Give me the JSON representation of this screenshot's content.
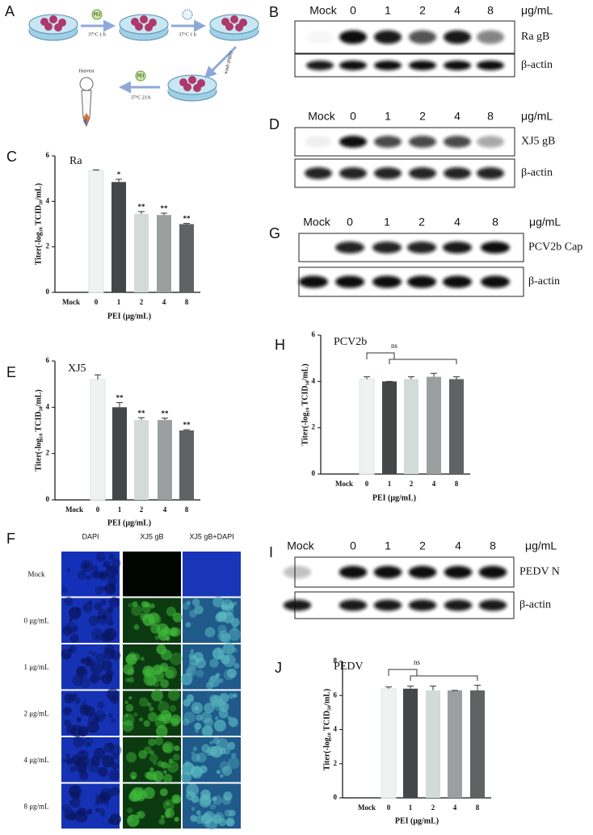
{
  "chart_data": [
    {
      "type": "bar",
      "panel": "C",
      "title": "Ra",
      "categories": [
        "Mock",
        "0",
        "1",
        "2",
        "4",
        "8"
      ],
      "values": [
        null,
        5.35,
        4.85,
        3.45,
        3.4,
        3.0
      ],
      "errors": [
        null,
        0.03,
        0.12,
        0.1,
        0.08,
        0.03
      ],
      "significance": [
        null,
        null,
        "*",
        "**",
        "**",
        "**"
      ],
      "colors": [
        null,
        "#eef3f2",
        "#444747",
        "#d3dbd9",
        "#9b9f9f",
        "#5f6363"
      ],
      "ylim": [
        0,
        6
      ],
      "yticks": [
        0,
        2,
        4,
        6
      ],
      "ylabel": "Titer(-log₁₀ TCID₅₀/mL)",
      "xlabel": "PEI (μg/mL)"
    },
    {
      "type": "bar",
      "panel": "E",
      "title": "XJ5",
      "categories": [
        "Mock",
        "0",
        "1",
        "2",
        "4",
        "8"
      ],
      "values": [
        null,
        5.2,
        4.0,
        3.45,
        3.45,
        3.0
      ],
      "errors": [
        null,
        0.2,
        0.2,
        0.1,
        0.08,
        0.03
      ],
      "significance": [
        null,
        null,
        "**",
        "**",
        "**",
        "**"
      ],
      "colors": [
        null,
        "#eef3f2",
        "#444747",
        "#d3dbd9",
        "#9b9f9f",
        "#5f6363"
      ],
      "ylim": [
        0,
        6
      ],
      "yticks": [
        0,
        2,
        4,
        6
      ],
      "ylabel": "Titer(-log₁₀ TCID₅₀/mL)",
      "xlabel": "PEI (μg/mL)"
    },
    {
      "type": "bar",
      "panel": "H",
      "title": "PCV2b",
      "categories": [
        "Mock",
        "0",
        "1",
        "2",
        "4",
        "8"
      ],
      "values": [
        null,
        4.1,
        4.0,
        4.1,
        4.2,
        4.1
      ],
      "errors": [
        null,
        0.1,
        0.0,
        0.1,
        0.15,
        0.1
      ],
      "annotation": "ns",
      "colors": [
        null,
        "#eef3f2",
        "#444747",
        "#d3dbd9",
        "#9b9f9f",
        "#5f6363"
      ],
      "ylim": [
        0,
        6
      ],
      "yticks": [
        0,
        2,
        4,
        6
      ],
      "ylabel": "Titer(-log₁₀ TCID₅₀/mL)",
      "xlabel": "PEI (μg/mL)"
    },
    {
      "type": "bar",
      "panel": "J",
      "title": "PEDV",
      "categories": [
        "Mock",
        "0",
        "1",
        "2",
        "4",
        "8"
      ],
      "values": [
        null,
        6.4,
        6.4,
        6.3,
        6.3,
        6.3
      ],
      "errors": [
        null,
        0.1,
        0.15,
        0.25,
        0.0,
        0.3
      ],
      "annotation": "ns",
      "colors": [
        null,
        "#eef3f2",
        "#444747",
        "#d3dbd9",
        "#9b9f9f",
        "#5f6363"
      ],
      "ylim": [
        0,
        8
      ],
      "yticks": [
        0,
        2,
        4,
        6,
        8
      ],
      "ylabel": "Titer(-log₁₀ TCID₅₀/mL)",
      "xlabel": "PEI (μg/mL)"
    }
  ],
  "panels": {
    "A": {
      "letter": "A",
      "steps": [
        "PEI",
        "37°C 1 h",
        "37°C 1 h",
        "wash (PBS)",
        "Harvest",
        "PEI",
        "37°C 23 h"
      ]
    },
    "B": {
      "letter": "B",
      "lanes": [
        "Mock",
        "0",
        "1",
        "2",
        "4",
        "8"
      ],
      "unit": "μg/mL",
      "targets": [
        "Ra gB",
        "β-actin"
      ]
    },
    "D": {
      "letter": "D",
      "lanes": [
        "Mock",
        "0",
        "1",
        "2",
        "4",
        "8"
      ],
      "unit": "μg/mL",
      "targets": [
        "XJ5 gB",
        "β-actin"
      ]
    },
    "G": {
      "letter": "G",
      "lanes": [
        "Mock",
        "0",
        "1",
        "2",
        "4",
        "8"
      ],
      "unit": "μg/mL",
      "targets": [
        "PCV2b Cap",
        "β-actin"
      ]
    },
    "I": {
      "letter": "I",
      "lanes": [
        "Mock",
        "0",
        "1",
        "2",
        "4",
        "8"
      ],
      "unit": "μg/mL",
      "targets": [
        "PEDV N",
        "β-actin"
      ]
    },
    "F": {
      "letter": "F",
      "columns": [
        "DAPI",
        "XJ5 gB",
        "XJ5 gB+DAPI"
      ],
      "rows": [
        "Mock",
        "0 μg/mL",
        "1 μg/mL",
        "2 μg/mL",
        "4 μg/mL",
        "8 μg/mL"
      ]
    }
  }
}
